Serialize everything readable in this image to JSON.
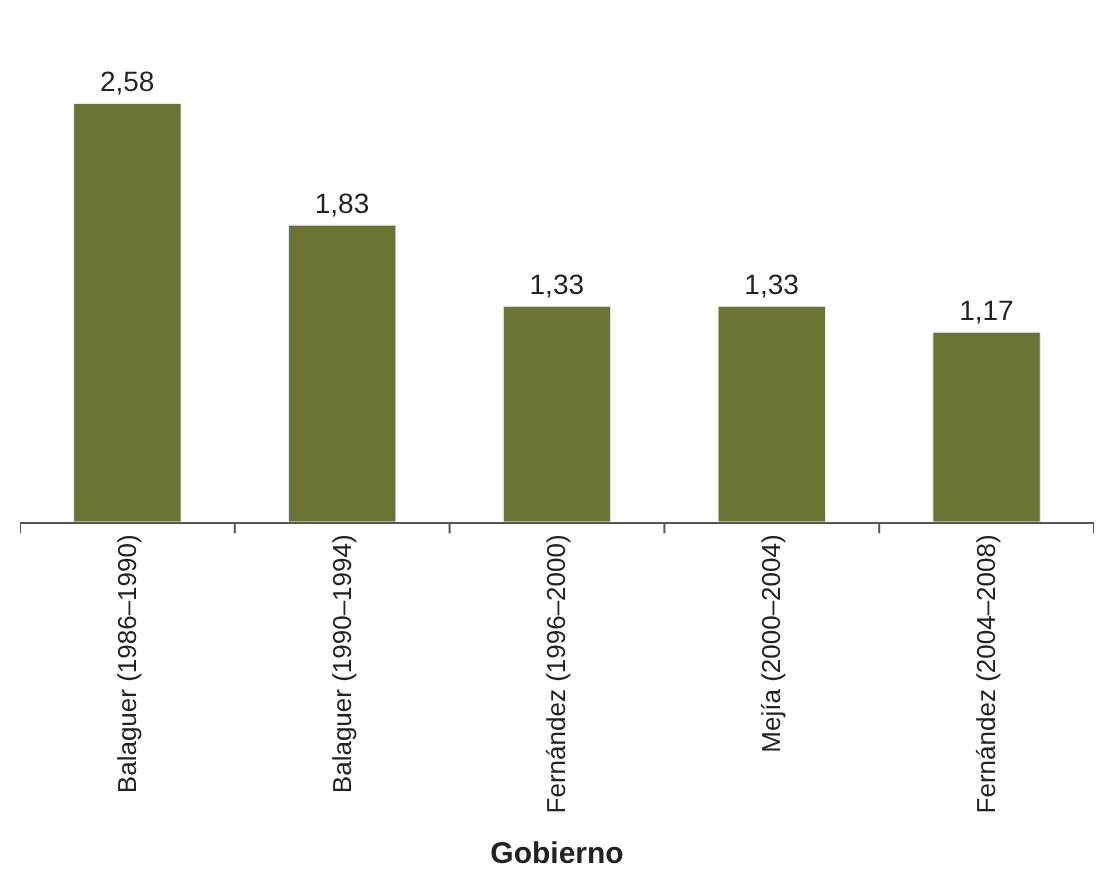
{
  "chart_data": {
    "type": "bar",
    "xlabel": "Gobierno",
    "categories": [
      "Balaguer (1986–1990)",
      "Balaguer (1990–1994)",
      "Fernández (1996–2000)",
      "Mejía (2000–2004)",
      "Fernández (2004–2008)"
    ],
    "values": [
      2.58,
      1.83,
      1.33,
      1.33,
      1.17
    ],
    "value_labels": [
      "2,58",
      "1,83",
      "1,33",
      "1,33",
      "1,17"
    ],
    "color": "#6b7332"
  }
}
